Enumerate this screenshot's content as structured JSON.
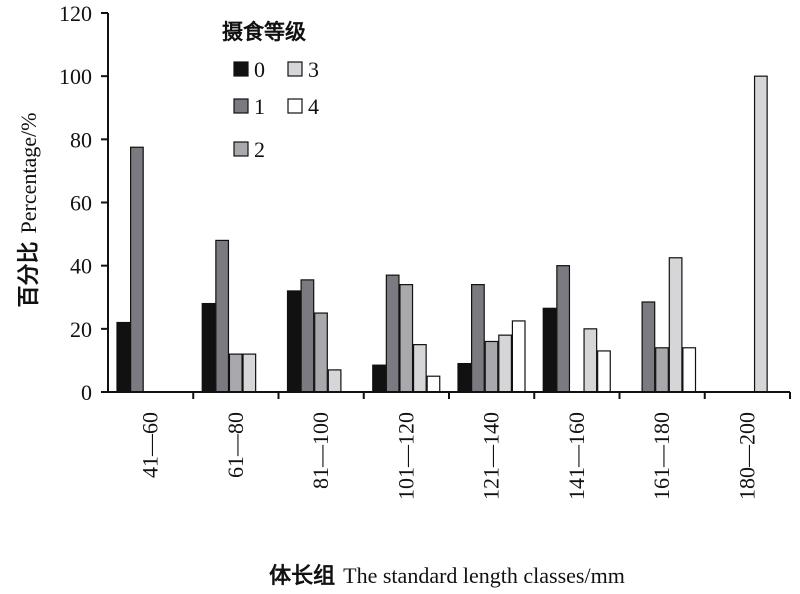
{
  "chart_data": {
    "type": "bar",
    "title": "",
    "ylabel_cn": "百分比",
    "ylabel_en": "Percentage/%",
    "xlabel_cn": "体长组",
    "xlabel_en": "The standard length classes/mm",
    "ylim": [
      0,
      120
    ],
    "yticks": [
      "0",
      "20",
      "40",
      "60",
      "80",
      "100",
      "120"
    ],
    "categories": [
      "41—60",
      "61—80",
      "81—100",
      "101—120",
      "121—140",
      "141—160",
      "161—180",
      "180—200"
    ],
    "legend_title": "摄食等级",
    "legend_placement": "top-center",
    "grid": false,
    "series": [
      {
        "name": "0",
        "color": "#111111",
        "values": [
          22,
          28,
          32,
          8.5,
          9,
          26.5,
          0,
          0
        ]
      },
      {
        "name": "1",
        "color": "#7a7a80",
        "values": [
          77.5,
          48,
          35.5,
          37,
          34,
          40,
          28.5,
          0
        ]
      },
      {
        "name": "2",
        "color": "#a9a9ad",
        "values": [
          0,
          12,
          25,
          34,
          16,
          0,
          14,
          0
        ]
      },
      {
        "name": "3",
        "color": "#d6d6d8",
        "values": [
          0,
          12,
          7,
          15,
          18,
          20,
          42.5,
          100
        ]
      },
      {
        "name": "4",
        "color": "#ffffff",
        "values": [
          0,
          0,
          0,
          5,
          22.5,
          13,
          14,
          0
        ]
      }
    ]
  }
}
